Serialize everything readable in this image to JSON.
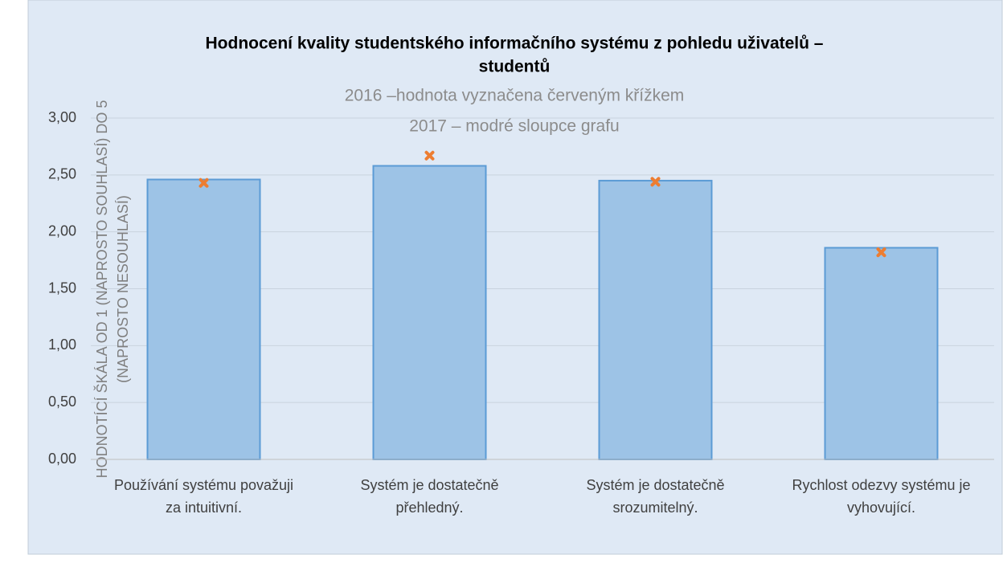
{
  "chart_data": {
    "type": "bar",
    "title": [
      "Hodnocení kvality studentského informačního systému z pohledu uživatelů –",
      "studentů"
    ],
    "subtitle": [
      "2016 –hodnota vyznačena červeným křížkem",
      "2017 – modré sloupce grafu"
    ],
    "y_label": [
      "HODNOTÍCÍ ŠKÁLA OD 1 (NAPROSTO SOUHLASÍ) DO 5",
      "(NAPROSTO NESOUHLASÍ)"
    ],
    "categories": [
      [
        "Používání systému považuji",
        "za intuitivní."
      ],
      [
        "Systém je dostatečně",
        "přehledný."
      ],
      [
        "Systém je dostatečně",
        "srozumitelný."
      ],
      [
        "Rychlost odezvy systému je",
        "vyhovující."
      ]
    ],
    "series": [
      {
        "color": "#9dc3e6",
        "values": [
          2.46,
          2.58,
          2.45,
          1.86
        ]
      },
      {
        "color": "#ed7d31",
        "marker": "x",
        "values": [
          2.43,
          2.67,
          2.44,
          1.82
        ]
      }
    ],
    "ylim": [
      0,
      3
    ],
    "yticks": [
      {
        "value": 0,
        "label": "0,00"
      },
      {
        "value": 0.5,
        "label": "0,50"
      },
      {
        "value": 1,
        "label": "1,00"
      },
      {
        "value": 1.5,
        "label": "1,50"
      },
      {
        "value": 2,
        "label": "2,00"
      },
      {
        "value": 2.5,
        "label": "2,50"
      },
      {
        "value": 3,
        "label": "3,00"
      }
    ],
    "grid": true
  }
}
